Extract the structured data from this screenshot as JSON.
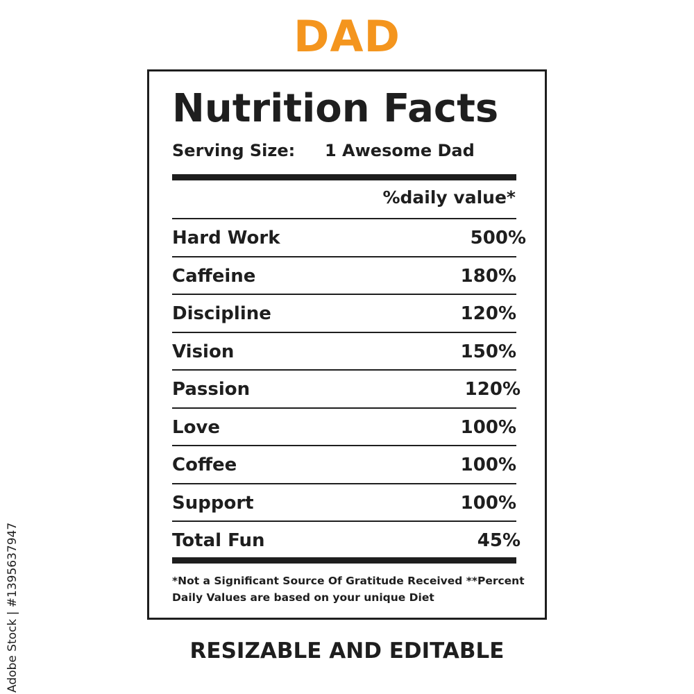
{
  "title": "DAD",
  "label": {
    "heading": "Nutrition Facts",
    "serving_label": "Serving Size:",
    "serving_value": "1 Awesome Dad",
    "daily_value_header": "%daily value*",
    "rows": [
      {
        "name": "Hard Work",
        "value": "500%"
      },
      {
        "name": "Caffeine",
        "value": "180%"
      },
      {
        "name": "Discipline",
        "value": "120%"
      },
      {
        "name": "Vision",
        "value": "150%"
      },
      {
        "name": "Passion",
        "value": "120%"
      },
      {
        "name": "Love",
        "value": "100%"
      },
      {
        "name": "Coffee",
        "value": "100%"
      },
      {
        "name": "Support",
        "value": "100%"
      },
      {
        "name": "Total Fun",
        "value": "45%"
      }
    ],
    "footnote_line1": "*Not a Significant Source Of Gratitude Received **Percent",
    "footnote_line2": "Daily Values are based on your  unique Diet"
  },
  "bottom_text": "RESIZABLE AND EDITABLE",
  "side_text": "Adobe Stock | #1395637947",
  "colors": {
    "title": "#f4951e",
    "text": "#1e1e1e",
    "background": "#ffffff"
  }
}
